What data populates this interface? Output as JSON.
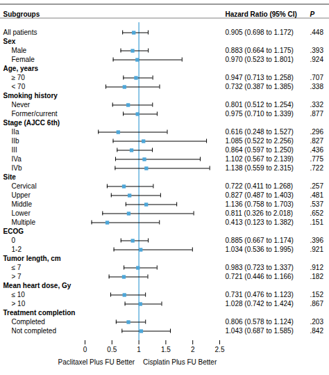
{
  "chart_data": {
    "type": "forest",
    "column_titles": [
      "Subgroups",
      "Hazard Ratio (95% CI)",
      "P"
    ],
    "annotations": [
      "Paclitaxel Plus FU Better",
      "Cisplatin Plus FU Better"
    ],
    "xlim": [
      0,
      2.5
    ],
    "xticks": [
      0,
      0.5,
      1,
      1.5,
      2,
      2.5
    ],
    "reference_line": 1,
    "color": "#4da6d8",
    "rows": [
      {
        "label": "All patients",
        "level": 0,
        "hr": 0.905,
        "lo": 0.698,
        "hi": 1.172,
        "ci_label": "0.905 (0.698 to 1.172)",
        "p_label": ".448"
      },
      {
        "label": "Sex",
        "level": 0,
        "hr": null,
        "lo": null,
        "hi": null
      },
      {
        "label": "Male",
        "level": 1,
        "hr": 0.883,
        "lo": 0.664,
        "hi": 1.175,
        "ci_label": "0.883 (0.664 to 1.175)",
        "p_label": ".393"
      },
      {
        "label": "Female",
        "level": 1,
        "hr": 0.97,
        "lo": 0.523,
        "hi": 1.801,
        "ci_label": "0.970 (0.523 to 1.801)",
        "p_label": ".924"
      },
      {
        "label": "Age, years",
        "level": 0,
        "hr": null,
        "lo": null,
        "hi": null
      },
      {
        "label": "≥ 70",
        "level": 1,
        "hr": 0.947,
        "lo": 0.713,
        "hi": 1.258,
        "ci_label": "0.947 (0.713 to 1.258)",
        "p_label": ".707"
      },
      {
        "label": "< 70",
        "level": 1,
        "hr": 0.732,
        "lo": 0.387,
        "hi": 1.385,
        "ci_label": "0.732 (0.387 to 1.385)",
        "p_label": ".338"
      },
      {
        "label": "Smoking history",
        "level": 0,
        "hr": null,
        "lo": null,
        "hi": null
      },
      {
        "label": "Never",
        "level": 1,
        "hr": 0.801,
        "lo": 0.512,
        "hi": 1.254,
        "ci_label": "0.801 (0.512 to 1.254)",
        "p_label": ".332"
      },
      {
        "label": "Former/current",
        "level": 1,
        "hr": 0.975,
        "lo": 0.71,
        "hi": 1.339,
        "ci_label": "0.975 (0.710 to 1.339)",
        "p_label": ".877"
      },
      {
        "label": "Stage (AJCC 6th)",
        "level": 0,
        "hr": null,
        "lo": null,
        "hi": null
      },
      {
        "label": "IIa",
        "level": 1,
        "hr": 0.616,
        "lo": 0.248,
        "hi": 1.527,
        "ci_label": "0.616 (0.248 to 1.527)",
        "p_label": ".296"
      },
      {
        "label": "IIb",
        "level": 1,
        "hr": 1.085,
        "lo": 0.522,
        "hi": 2.256,
        "ci_label": "1.085 (0.522 to 2.256)",
        "p_label": ".827"
      },
      {
        "label": "III",
        "level": 1,
        "hr": 0.864,
        "lo": 0.597,
        "hi": 1.25,
        "ci_label": "0.864 (0.597 to 1.250)",
        "p_label": ".436"
      },
      {
        "label": "IVa",
        "level": 1,
        "hr": 1.102,
        "lo": 0.567,
        "hi": 2.139,
        "ci_label": "1.102 (0.567 to 2.139)",
        "p_label": ".775"
      },
      {
        "label": "IVb",
        "level": 1,
        "hr": 1.138,
        "lo": 0.559,
        "hi": 2.315,
        "ci_label": "1.138 (0.559 to 2.315)",
        "p_label": ".722"
      },
      {
        "label": "Site",
        "level": 0,
        "hr": null,
        "lo": null,
        "hi": null
      },
      {
        "label": "Cervical",
        "level": 1,
        "hr": 0.722,
        "lo": 0.411,
        "hi": 1.268,
        "ci_label": "0.722 (0.411 to 1.268)",
        "p_label": ".257"
      },
      {
        "label": "Upper",
        "level": 1,
        "hr": 0.827,
        "lo": 0.487,
        "hi": 1.403,
        "ci_label": "0.827 (0.487 to 1.403)",
        "p_label": ".481"
      },
      {
        "label": "Middle",
        "level": 1,
        "hr": 1.136,
        "lo": 0.758,
        "hi": 1.703,
        "ci_label": "1.136 (0.758 to 1.703)",
        "p_label": ".537"
      },
      {
        "label": "Lower",
        "level": 1,
        "hr": 0.811,
        "lo": 0.326,
        "hi": 2.018,
        "ci_label": "0.811 (0.326 to 2.018)",
        "p_label": ".652"
      },
      {
        "label": "Multiple",
        "level": 1,
        "hr": 0.413,
        "lo": 0.123,
        "hi": 1.382,
        "ci_label": "0.413 (0.123 to 1.382)",
        "p_label": ".151"
      },
      {
        "label": "ECOG",
        "level": 0,
        "hr": null,
        "lo": null,
        "hi": null
      },
      {
        "label": "0",
        "level": 1,
        "hr": 0.885,
        "lo": 0.667,
        "hi": 1.174,
        "ci_label": "0.885 (0.667 to 1.174)",
        "p_label": ".396"
      },
      {
        "label": "1-2",
        "level": 1,
        "hr": 1.034,
        "lo": 0.536,
        "hi": 1.995,
        "ci_label": "1.034 (0.536 to 1.995)",
        "p_label": ".921"
      },
      {
        "label": "Tumor length, cm",
        "level": 0,
        "hr": null,
        "lo": null,
        "hi": null
      },
      {
        "label": "≤ 7",
        "level": 1,
        "hr": 0.983,
        "lo": 0.723,
        "hi": 1.337,
        "ci_label": "0.983 (0.723 to 1.337)",
        "p_label": ".912"
      },
      {
        "label": "> 7",
        "level": 1,
        "hr": 0.721,
        "lo": 0.446,
        "hi": 1.166,
        "ci_label": "0.721 (0.446 to 1.166)",
        "p_label": ".182"
      },
      {
        "label": "Mean heart dose, Gy",
        "level": 0,
        "hr": null,
        "lo": null,
        "hi": null
      },
      {
        "label": "≤ 10",
        "level": 1,
        "hr": 0.731,
        "lo": 0.476,
        "hi": 1.123,
        "ci_label": "0.731 (0.476 to 1.123)",
        "p_label": ".152"
      },
      {
        "label": "> 10",
        "level": 1,
        "hr": 1.028,
        "lo": 0.742,
        "hi": 1.424,
        "ci_label": "1.028 (0.742 to 1.424)",
        "p_label": ".867"
      },
      {
        "label": "Treatment completion",
        "level": 0,
        "hr": null,
        "lo": null,
        "hi": null
      },
      {
        "label": "Completed",
        "level": 1,
        "hr": 0.806,
        "lo": 0.578,
        "hi": 1.124,
        "ci_label": "0.806 (0.578 to 1.124)",
        "p_label": ".203"
      },
      {
        "label": "Not completed",
        "level": 1,
        "hr": 1.043,
        "lo": 0.687,
        "hi": 1.585,
        "ci_label": "1.043 (0.687 to 1.585)",
        "p_label": ".842"
      }
    ]
  }
}
